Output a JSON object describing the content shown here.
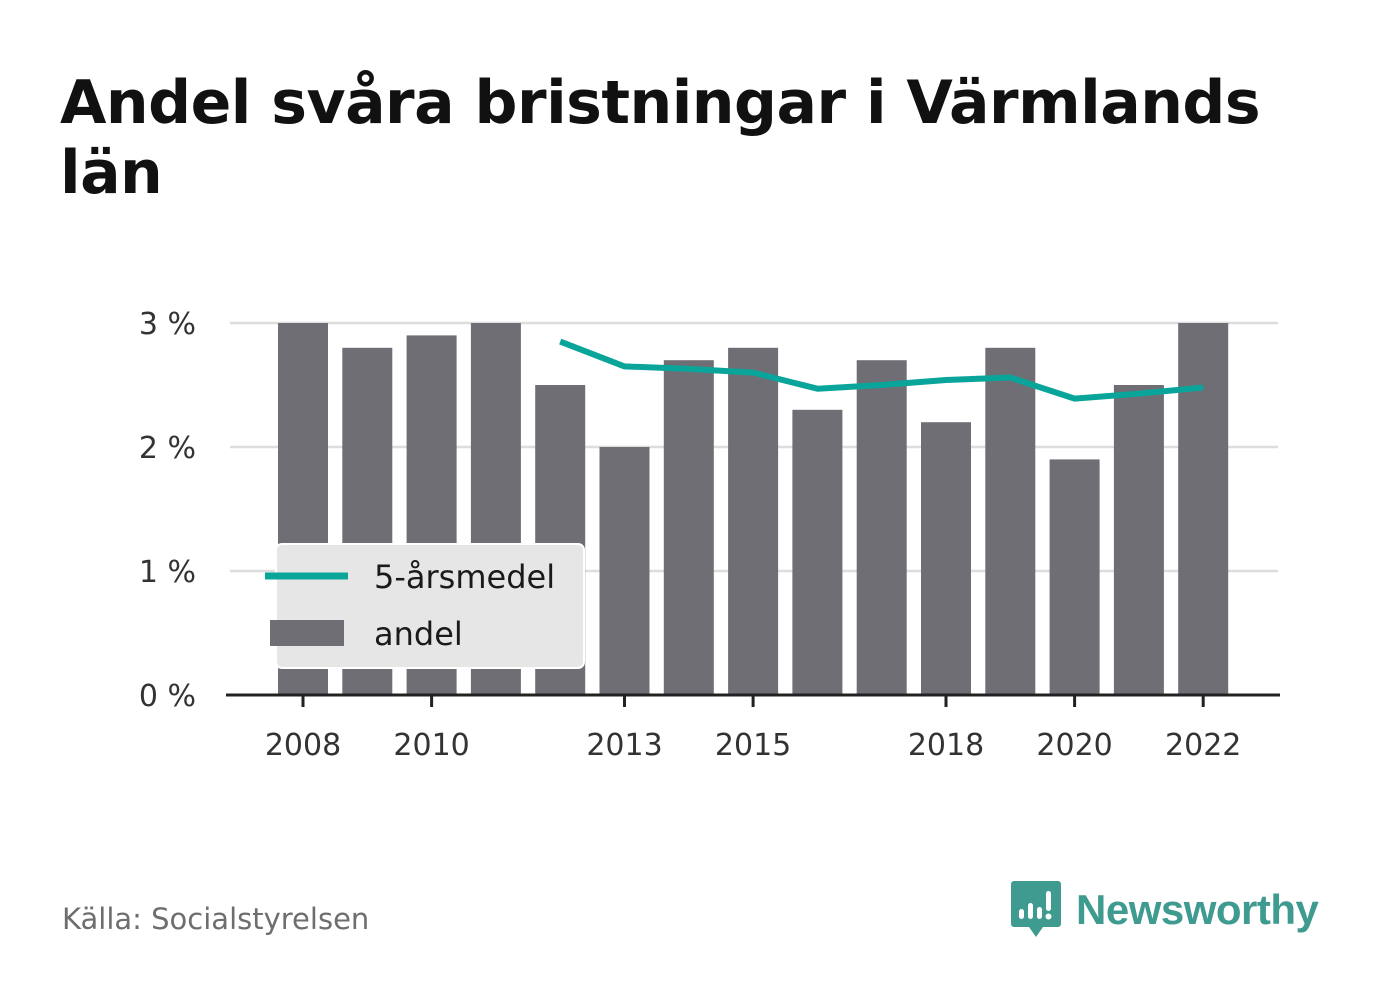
{
  "title": "Andel svåra bristningar i Värmlands län",
  "source": "Källa: Socialstyrelsen",
  "brand": {
    "name": "Newsworthy",
    "icon": "newsworthy-logo-icon",
    "color": "#3f9a8f"
  },
  "colors": {
    "bar": "#6f6e74",
    "line": "#0aa59a",
    "grid": "#dddddd",
    "axis": "#222222"
  },
  "chart_data": {
    "type": "bar",
    "title": "Andel svåra bristningar i Värmlands län",
    "xlabel": "",
    "ylabel": "",
    "ylim": [
      0,
      3
    ],
    "yticks": [
      0,
      1,
      2,
      3
    ],
    "ytick_labels": [
      "0 %",
      "1 %",
      "2 %",
      "3 %"
    ],
    "xtick_labels": [
      "2008",
      "2010",
      "2013",
      "2015",
      "2018",
      "2020",
      "2022"
    ],
    "categories": [
      "2008",
      "2009",
      "2010",
      "2011",
      "2012",
      "2013",
      "2014",
      "2015",
      "2016",
      "2017",
      "2018",
      "2019",
      "2020",
      "2021",
      "2022"
    ],
    "grid": true,
    "legend_position": "bottom-left",
    "series": [
      {
        "name": "5-årsmedel",
        "type": "line",
        "values": [
          null,
          null,
          null,
          null,
          2.85,
          2.65,
          2.63,
          2.6,
          2.47,
          2.5,
          2.54,
          2.56,
          2.39,
          2.43,
          2.48
        ]
      },
      {
        "name": "andel",
        "type": "bar",
        "values": [
          3.0,
          2.8,
          2.9,
          3.0,
          2.5,
          2.0,
          2.7,
          2.8,
          2.3,
          2.7,
          2.2,
          2.8,
          1.9,
          2.5,
          3.0
        ]
      }
    ]
  }
}
